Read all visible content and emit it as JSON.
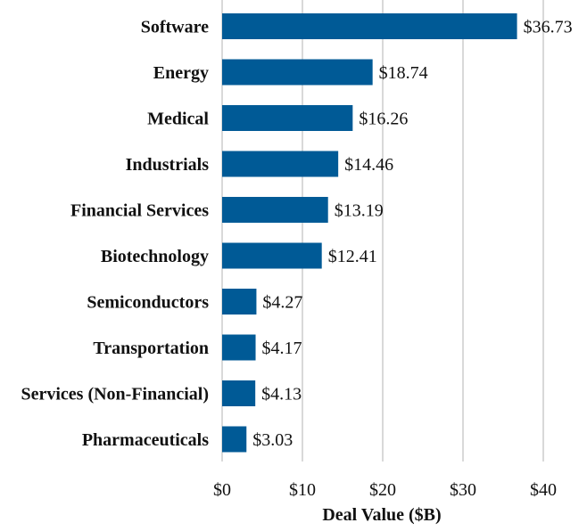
{
  "chart_data": {
    "type": "bar",
    "orientation": "horizontal",
    "title": "",
    "categories": [
      "Software",
      "Energy",
      "Medical",
      "Industrials",
      "Financial Services",
      "Biotechnology",
      "Semiconductors",
      "Transportation",
      "Services (Non-Financial)",
      "Pharmaceuticals"
    ],
    "values": [
      36.73,
      18.74,
      16.26,
      14.46,
      13.19,
      12.41,
      4.27,
      4.17,
      4.13,
      3.03
    ],
    "value_labels": [
      "$36.73",
      "$18.74",
      "$16.26",
      "$14.46",
      "$13.19",
      "$12.41",
      "$4.27",
      "$4.17",
      "$4.13",
      "$3.03"
    ],
    "xlabel": "Deal Value ($B)",
    "ylabel": "",
    "xlim": [
      0,
      40
    ],
    "xticks": [
      0,
      10,
      20,
      30,
      40
    ],
    "xtick_labels": [
      "$0",
      "$10",
      "$20",
      "$30",
      "$40"
    ],
    "grid": "vertical",
    "legend": "none",
    "bar_color": "#005a96"
  }
}
